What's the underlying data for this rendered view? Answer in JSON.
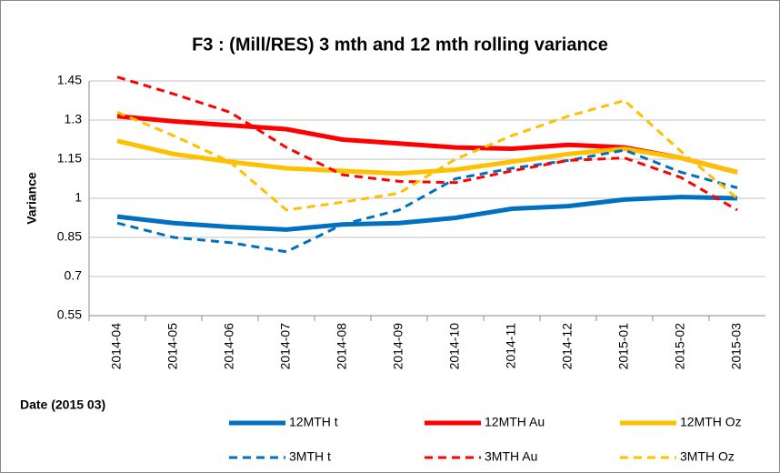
{
  "chart_data": {
    "type": "line",
    "title": "F3 : (Mill/RES) 3 mth and 12 mth rolling variance",
    "x_label": "Date (2015 03)",
    "y_label": "Variance",
    "categories": [
      "2014-04",
      "2014-05",
      "2014-06",
      "2014-07",
      "2014-08",
      "2014-09",
      "2014-10",
      "2014-11",
      "2014-12",
      "2015-01",
      "2015-02",
      "2015-03"
    ],
    "ylim": [
      0.55,
      1.45
    ],
    "yticks": [
      0.55,
      0.7,
      0.85,
      1,
      1.15,
      1.3,
      1.45
    ],
    "grid": true,
    "series": [
      {
        "name": "12MTH t",
        "color": "#0070c0",
        "dash": false,
        "values": [
          0.93,
          0.905,
          0.89,
          0.88,
          0.9,
          0.905,
          0.925,
          0.96,
          0.97,
          0.995,
          1.005,
          1.0
        ]
      },
      {
        "name": "12MTH Au",
        "color": "#ff0000",
        "dash": false,
        "values": [
          1.315,
          1.295,
          1.28,
          1.265,
          1.225,
          1.21,
          1.195,
          1.19,
          1.205,
          1.195,
          1.155,
          1.1
        ]
      },
      {
        "name": "12MTH Oz",
        "color": "#ffc000",
        "dash": false,
        "values": [
          1.22,
          1.17,
          1.14,
          1.115,
          1.105,
          1.095,
          1.11,
          1.14,
          1.17,
          1.19,
          1.155,
          1.1
        ]
      },
      {
        "name": "3MTH t",
        "color": "#0070c0",
        "dash": true,
        "values": [
          0.905,
          0.85,
          0.83,
          0.795,
          0.9,
          0.955,
          1.075,
          1.115,
          1.145,
          1.185,
          1.1,
          1.04
        ]
      },
      {
        "name": "3MTH Au",
        "color": "#ff0000",
        "dash": true,
        "values": [
          1.465,
          1.4,
          1.33,
          1.195,
          1.09,
          1.065,
          1.06,
          1.105,
          1.145,
          1.155,
          1.08,
          0.955
        ]
      },
      {
        "name": "3MTH Oz",
        "color": "#ffc000",
        "dash": true,
        "values": [
          1.33,
          1.24,
          1.14,
          0.955,
          0.985,
          1.02,
          1.15,
          1.24,
          1.315,
          1.375,
          1.18,
          1.0
        ]
      }
    ]
  }
}
